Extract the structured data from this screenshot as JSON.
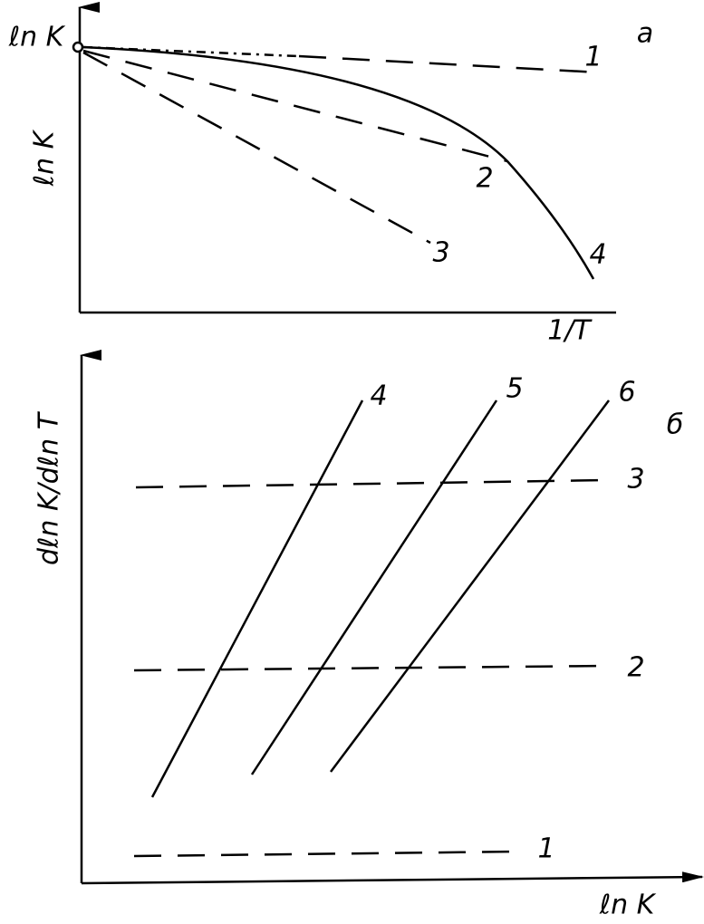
{
  "panel_a": {
    "label": "a",
    "y_axis_top": "ℓn K",
    "y_axis": "ℓn K",
    "x_axis": "1/T",
    "curves": [
      "1",
      "2",
      "3",
      "4"
    ]
  },
  "panel_b": {
    "label": "б",
    "y_axis": "dℓn K/dℓn T",
    "x_axis": "ℓn K",
    "lines": [
      "1",
      "2",
      "3",
      "4",
      "5",
      "6"
    ]
  }
}
